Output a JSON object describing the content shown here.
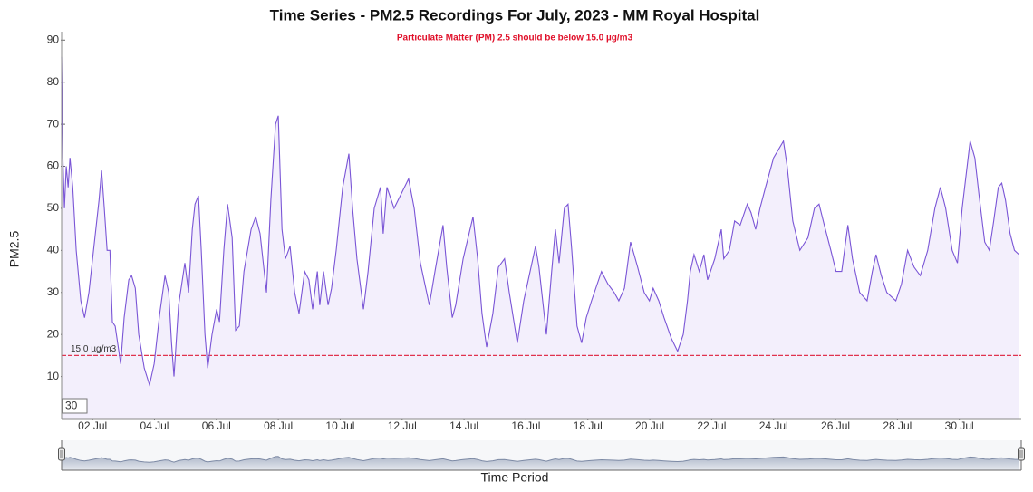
{
  "chart_data": {
    "type": "line",
    "title": "Time Series - PM2.5 Recordings For July, 2023 - MM Royal Hospital",
    "subtitle": "Particulate Matter (PM) 2.5 should be below 15.0 µg/m3",
    "ylabel": "PM2.5",
    "xlabel": "Time Period",
    "color": "#7a55d6",
    "fill_color": "#f3effc",
    "x": [
      1.0,
      1.04,
      1.09,
      1.15,
      1.21,
      1.27,
      1.36,
      1.47,
      1.62,
      1.74,
      1.88,
      2.06,
      2.21,
      2.29,
      2.38,
      2.47,
      2.56,
      2.64,
      2.73,
      2.91,
      3.02,
      3.17,
      3.26,
      3.38,
      3.49,
      3.67,
      3.84,
      3.99,
      4.17,
      4.34,
      4.46,
      4.55,
      4.63,
      4.78,
      4.98,
      5.1,
      5.22,
      5.31,
      5.42,
      5.51,
      5.63,
      5.72,
      5.86,
      6.01,
      6.1,
      6.24,
      6.36,
      6.51,
      6.62,
      6.74,
      6.89,
      7.12,
      7.27,
      7.41,
      7.62,
      7.76,
      7.91,
      8.0,
      8.12,
      8.23,
      8.38,
      8.53,
      8.67,
      8.85,
      8.99,
      9.11,
      9.26,
      9.34,
      9.46,
      9.61,
      9.72,
      9.87,
      10.08,
      10.28,
      10.4,
      10.54,
      10.75,
      10.9,
      11.1,
      11.3,
      11.39,
      11.51,
      11.74,
      12.21,
      12.39,
      12.59,
      12.88,
      13.06,
      13.32,
      13.44,
      13.62,
      13.73,
      13.97,
      14.29,
      14.44,
      14.58,
      14.73,
      14.93,
      15.11,
      15.31,
      15.46,
      15.72,
      15.93,
      16.31,
      16.42,
      16.66,
      16.83,
      16.95,
      17.07,
      17.24,
      17.36,
      17.48,
      17.65,
      17.8,
      17.95,
      18.12,
      18.44,
      18.65,
      18.85,
      19.0,
      19.18,
      19.38,
      19.61,
      19.82,
      19.99,
      20.11,
      20.29,
      20.46,
      20.7,
      20.9,
      21.08,
      21.22,
      21.31,
      21.43,
      21.6,
      21.75,
      21.87,
      22.1,
      22.31,
      22.39,
      22.57,
      22.74,
      22.92,
      23.15,
      23.27,
      23.42,
      23.56,
      23.74,
      24.0,
      24.32,
      24.44,
      24.62,
      24.85,
      25.11,
      25.32,
      25.47,
      25.64,
      25.85,
      26.02,
      26.2,
      26.4,
      26.55,
      26.78,
      27.02,
      27.19,
      27.31,
      27.48,
      27.66,
      27.95,
      28.13,
      28.33,
      28.54,
      28.74,
      28.98,
      29.21,
      29.39,
      29.56,
      29.77,
      29.94,
      30.09,
      30.35,
      30.5,
      30.64,
      30.82,
      30.97,
      31.11,
      31.26,
      31.37,
      31.49,
      31.64,
      31.78,
      31.93
    ],
    "values": [
      86,
      62,
      50,
      60,
      55,
      62,
      55,
      40,
      28,
      24,
      30,
      42,
      52,
      59,
      50,
      40,
      40,
      23,
      22,
      13,
      24,
      33,
      34,
      31,
      20,
      12,
      8,
      13,
      25,
      34,
      30,
      18,
      10,
      27,
      37,
      30,
      45,
      51,
      53,
      40,
      20,
      12,
      20,
      26,
      23,
      40,
      51,
      43,
      21,
      22,
      35,
      45,
      48,
      44,
      30,
      52,
      70,
      72,
      45,
      38,
      41,
      30,
      25,
      35,
      33,
      26,
      35,
      27,
      35,
      27,
      31,
      40,
      55,
      63,
      50,
      38,
      26,
      35,
      50,
      55,
      44,
      55,
      50,
      57,
      50,
      37,
      27,
      35,
      46,
      36,
      24,
      27,
      38,
      48,
      38,
      25,
      17,
      25,
      36,
      38,
      30,
      18,
      28,
      41,
      36,
      20,
      35,
      45,
      37,
      50,
      51,
      40,
      22,
      18,
      24,
      28,
      35,
      32,
      30,
      28,
      31,
      42,
      36,
      30,
      28,
      31,
      28,
      24,
      19,
      16,
      20,
      28,
      35,
      39,
      35,
      39,
      33,
      38,
      45,
      38,
      40,
      47,
      46,
      51,
      49,
      45,
      50,
      55,
      62,
      66,
      60,
      47,
      40,
      43,
      50,
      51,
      46,
      40,
      35,
      35,
      46,
      38,
      30,
      28,
      35,
      39,
      34,
      30,
      28,
      32,
      40,
      36,
      34,
      40,
      50,
      55,
      50,
      40,
      37,
      50,
      66,
      62,
      53,
      42,
      40,
      47,
      55,
      56,
      52,
      44,
      40,
      39
    ],
    "xlim": [
      1,
      32
    ],
    "ylim": [
      0,
      92
    ],
    "xticks": [
      {
        "value": 2,
        "label": "02 Jul"
      },
      {
        "value": 4,
        "label": "04 Jul"
      },
      {
        "value": 6,
        "label": "06 Jul"
      },
      {
        "value": 8,
        "label": "08 Jul"
      },
      {
        "value": 10,
        "label": "10 Jul"
      },
      {
        "value": 12,
        "label": "12 Jul"
      },
      {
        "value": 14,
        "label": "14 Jul"
      },
      {
        "value": 16,
        "label": "16 Jul"
      },
      {
        "value": 18,
        "label": "18 Jul"
      },
      {
        "value": 20,
        "label": "20 Jul"
      },
      {
        "value": 22,
        "label": "22 Jul"
      },
      {
        "value": 24,
        "label": "24 Jul"
      },
      {
        "value": 26,
        "label": "26 Jul"
      },
      {
        "value": 28,
        "label": "28 Jul"
      },
      {
        "value": 30,
        "label": "30 Jul"
      }
    ],
    "yticks": [
      10,
      20,
      30,
      40,
      50,
      60,
      70,
      80,
      90
    ],
    "threshold": {
      "value": 15,
      "label": "15.0 µg/m3",
      "color": "#e0334f"
    },
    "rolling_period": 30,
    "range_selector": true
  }
}
